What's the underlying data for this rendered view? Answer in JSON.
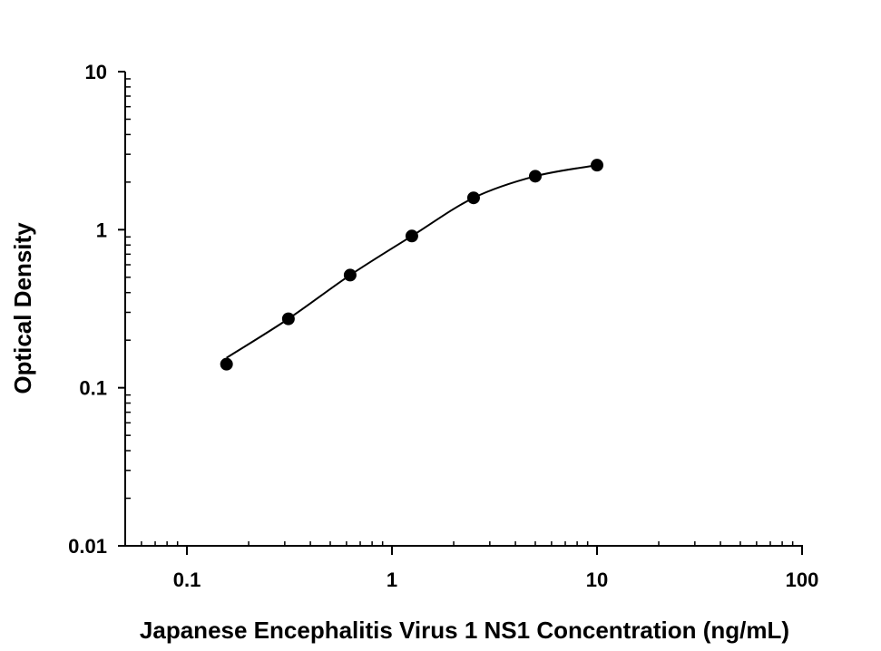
{
  "chart_data": {
    "type": "scatter",
    "title": "",
    "xlabel": "Japanese Encephalitis Virus 1 NS1 Concentration (ng/mL)",
    "ylabel": "Optical Density",
    "x_scale": "log",
    "y_scale": "log",
    "xlim": [
      0.05,
      100
    ],
    "ylim": [
      0.01,
      10
    ],
    "x_ticks": [
      "0.1",
      "1",
      "10",
      "100"
    ],
    "y_ticks": [
      "0.01",
      "0.1",
      "1",
      "10"
    ],
    "grid": false,
    "legend": "none",
    "fit_curve": "smooth line through points",
    "series": [
      {
        "x": [
          0.156,
          0.3125,
          0.625,
          1.25,
          2.5,
          5,
          10
        ],
        "y": [
          0.141,
          0.273,
          0.516,
          0.912,
          1.59,
          2.18,
          2.56
        ],
        "marker_color": "#000000"
      }
    ]
  }
}
